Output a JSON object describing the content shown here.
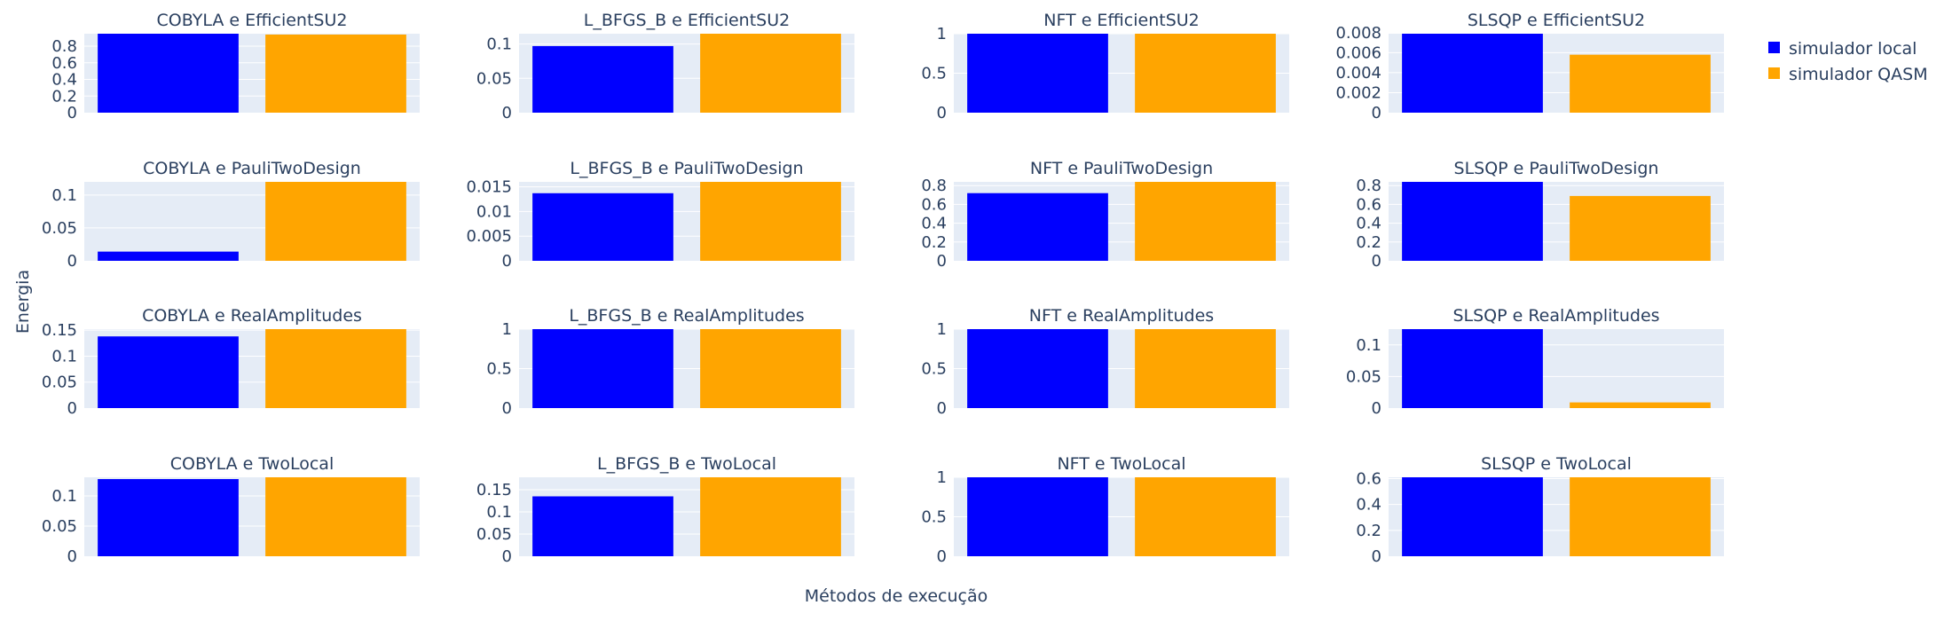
{
  "chart_data": {
    "type": "bar",
    "xlabel": "Métodos de execução",
    "ylabel": "Energia",
    "legend_position": "top-right",
    "series_styles": [
      {
        "name": "simulador local",
        "color": "#0000ff"
      },
      {
        "name": "simulador QASM",
        "color": "#ffa500"
      }
    ],
    "grid": true,
    "subplots": [
      {
        "title": "COBYLA e EfficientSU2",
        "values": [
          0.95,
          0.94
        ],
        "ylim": [
          0,
          0.95
        ],
        "ticks": [
          0,
          0.2,
          0.4,
          0.6,
          0.8
        ],
        "tick_labels": [
          "0",
          "0.2",
          "0.4",
          "0.6",
          "0.8"
        ]
      },
      {
        "title": "L_BFGS_B e EfficientSU2",
        "values": [
          0.097,
          0.115
        ],
        "ylim": [
          0,
          0.115
        ],
        "ticks": [
          0,
          0.05,
          0.1
        ],
        "tick_labels": [
          "0",
          "0.05",
          "0.1"
        ]
      },
      {
        "title": "NFT e EfficientSU2",
        "values": [
          1.0,
          1.0
        ],
        "ylim": [
          0,
          1.0
        ],
        "ticks": [
          0,
          0.5,
          1
        ],
        "tick_labels": [
          "0",
          "0.5",
          "1"
        ]
      },
      {
        "title": "SLSQP e EfficientSU2",
        "values": [
          0.0079,
          0.0058
        ],
        "ylim": [
          0,
          0.0079
        ],
        "ticks": [
          0,
          0.002,
          0.004,
          0.006,
          0.008
        ],
        "tick_labels": [
          "0",
          "0.002",
          "0.004",
          "0.006",
          "0.008"
        ]
      },
      {
        "title": "COBYLA e PauliTwoDesign",
        "values": [
          0.014,
          0.12
        ],
        "ylim": [
          0,
          0.12
        ],
        "ticks": [
          0,
          0.05,
          0.1
        ],
        "tick_labels": [
          "0",
          "0.05",
          "0.1"
        ]
      },
      {
        "title": "L_BFGS_B e PauliTwoDesign",
        "values": [
          0.0137,
          0.016
        ],
        "ylim": [
          0,
          0.016
        ],
        "ticks": [
          0,
          0.005,
          0.01,
          0.015
        ],
        "tick_labels": [
          "0",
          "0.005",
          "0.01",
          "0.015"
        ]
      },
      {
        "title": "NFT e PauliTwoDesign",
        "values": [
          0.72,
          0.84
        ],
        "ylim": [
          0,
          0.84
        ],
        "ticks": [
          0,
          0.2,
          0.4,
          0.6,
          0.8
        ],
        "tick_labels": [
          "0",
          "0.2",
          "0.4",
          "0.6",
          "0.8"
        ]
      },
      {
        "title": "SLSQP e PauliTwoDesign",
        "values": [
          0.84,
          0.69
        ],
        "ylim": [
          0,
          0.84
        ],
        "ticks": [
          0,
          0.2,
          0.4,
          0.6,
          0.8
        ],
        "tick_labels": [
          "0",
          "0.2",
          "0.4",
          "0.6",
          "0.8"
        ]
      },
      {
        "title": "COBYLA e RealAmplitudes",
        "values": [
          0.138,
          0.152
        ],
        "ylim": [
          0,
          0.152
        ],
        "ticks": [
          0,
          0.05,
          0.1,
          0.15
        ],
        "tick_labels": [
          "0",
          "0.05",
          "0.1",
          "0.15"
        ]
      },
      {
        "title": "L_BFGS_B e RealAmplitudes",
        "values": [
          1.0,
          1.0
        ],
        "ylim": [
          0,
          1.0
        ],
        "ticks": [
          0,
          0.5,
          1
        ],
        "tick_labels": [
          "0",
          "0.5",
          "1"
        ]
      },
      {
        "title": "NFT e RealAmplitudes",
        "values": [
          1.0,
          1.0
        ],
        "ylim": [
          0,
          1.0
        ],
        "ticks": [
          0,
          0.5,
          1
        ],
        "tick_labels": [
          "0",
          "0.5",
          "1"
        ]
      },
      {
        "title": "SLSQP e RealAmplitudes",
        "values": [
          0.125,
          0.009
        ],
        "ylim": [
          0,
          0.125
        ],
        "ticks": [
          0,
          0.05,
          0.1
        ],
        "tick_labels": [
          "0",
          "0.05",
          "0.1"
        ]
      },
      {
        "title": "COBYLA e TwoLocal",
        "values": [
          0.128,
          0.131
        ],
        "ylim": [
          0,
          0.131
        ],
        "ticks": [
          0,
          0.05,
          0.1
        ],
        "tick_labels": [
          "0",
          "0.05",
          "0.1"
        ]
      },
      {
        "title": "L_BFGS_B e TwoLocal",
        "values": [
          0.135,
          0.178
        ],
        "ylim": [
          0,
          0.178
        ],
        "ticks": [
          0,
          0.05,
          0.1,
          0.15
        ],
        "tick_labels": [
          "0",
          "0.05",
          "0.1",
          "0.15"
        ]
      },
      {
        "title": "NFT e TwoLocal",
        "values": [
          1.0,
          1.0
        ],
        "ylim": [
          0,
          1.0
        ],
        "ticks": [
          0,
          0.5,
          1
        ],
        "tick_labels": [
          "0",
          "0.5",
          "1"
        ]
      },
      {
        "title": "SLSQP e TwoLocal",
        "values": [
          0.61,
          0.61
        ],
        "ylim": [
          0,
          0.61
        ],
        "ticks": [
          0,
          0.2,
          0.4,
          0.6
        ],
        "tick_labels": [
          "0",
          "0.2",
          "0.4",
          "0.6"
        ]
      }
    ]
  }
}
